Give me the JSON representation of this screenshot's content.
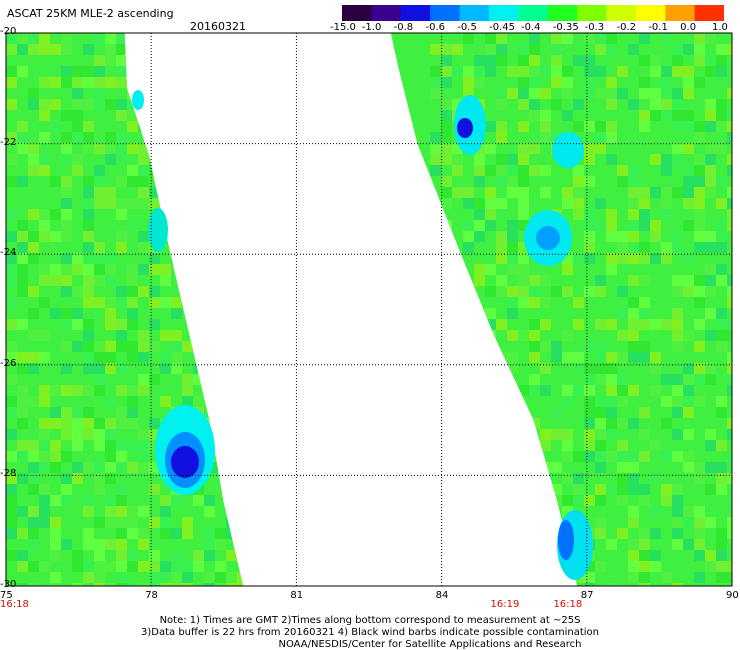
{
  "header": {
    "title": "ASCAT 25KM MLE-2 ascending",
    "date": "20160321"
  },
  "colorbar": {
    "labels": [
      "-15.0",
      "-1.0",
      "-0.8",
      "-0.6",
      "-0.5",
      "-0.45",
      "-0.4",
      "-0.35",
      "-0.3",
      "-0.2",
      "-0.1",
      "0.0",
      "1.0"
    ],
    "colors": [
      "#2a0040",
      "#3a0090",
      "#1010e0",
      "#0070ff",
      "#00b8ff",
      "#00f0f0",
      "#00ff90",
      "#20ff20",
      "#80ff00",
      "#d0ff00",
      "#ffff00",
      "#ffa000",
      "#ff3000"
    ]
  },
  "map": {
    "x_axis_ticks": [
      "75",
      "78",
      "81",
      "84",
      "87",
      "90"
    ],
    "y_axis_ticks": [
      "-20",
      "-22",
      "-24",
      "-26",
      "-28",
      "-30"
    ],
    "x_range": [
      75,
      90
    ],
    "y_range": [
      -20,
      -30
    ],
    "times": [
      {
        "label": "16:18",
        "lon": 75
      },
      {
        "label": "16:19",
        "lon": 85.3
      },
      {
        "label": "16:18",
        "lon": 86.6
      }
    ],
    "background_color": "#ffffff",
    "field_color": "#40f040"
  },
  "notes": {
    "line1": "Note: 1) Times are GMT 2)Times along bottom correspond to measurement at ~25S",
    "line2": "3)Data buffer is 22 hrs from 20160321 4) Black wind barbs indicate possible contamination",
    "line3": "NOAA/NESDIS/Center for Satellite Applications and Research"
  }
}
